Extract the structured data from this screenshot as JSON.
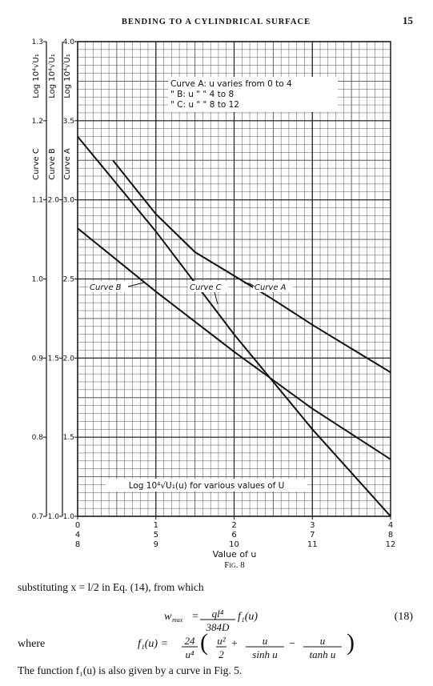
{
  "header": {
    "title": "BENDING TO A CYLINDRICAL SURFACE",
    "page": "15"
  },
  "chart_data": {
    "type": "line",
    "grid": true,
    "xlabel": "Value of u",
    "annotations": [
      "Curve A: u varies from 0 to 4",
      "\"  B: u   \"    \"   4 to 8",
      "\"  C: u   \"    \"   8 to 12"
    ],
    "note": "Log 10⁴√U₁(u) for various values of U",
    "x_axes": [
      {
        "xlim": [
          0,
          4
        ],
        "xticks": [
          0,
          1,
          2,
          3,
          4
        ]
      },
      {
        "xlim": [
          4,
          8
        ],
        "xticks": [
          4,
          5,
          6,
          7,
          8
        ]
      },
      {
        "xlim": [
          8,
          12
        ],
        "xticks": [
          8,
          9,
          10,
          11,
          12
        ]
      }
    ],
    "y_axes": [
      {
        "title": "Log 10⁴√U₁",
        "label": "Curve C",
        "ylim": [
          0.7,
          1.3
        ],
        "yticks": [
          0.7,
          0.8,
          0.9,
          {
            "value": 1,
            "label": "1.0"
          },
          1.1,
          1.2,
          1.3
        ]
      },
      {
        "title": "Log 10⁴√U₁",
        "label": "Curve B",
        "ylim": [
          1,
          2.5
        ],
        "yticks": [
          {
            "value": 1,
            "label": "1.0"
          },
          1.5,
          {
            "value": 2,
            "label": "2.0"
          }
        ]
      },
      {
        "title": "Log 10⁴√U₁",
        "label": "Curve A",
        "ylim": [
          1,
          4
        ],
        "yticks": [
          {
            "value": 1,
            "label": "1.0"
          },
          1.5,
          {
            "value": 2,
            "label": "2.0"
          },
          2.5,
          {
            "value": 3,
            "label": "3.0"
          },
          3.5,
          {
            "value": 4,
            "label": "4.0"
          }
        ]
      }
    ],
    "series": [
      {
        "name": "Curve A",
        "color": "#111111",
        "x_axis": 0,
        "y_axis": 2,
        "x": [
          0.45,
          1,
          1.5,
          2,
          2.5,
          3,
          3.5,
          4
        ],
        "values": [
          3.25,
          2.91,
          2.67,
          2.52,
          2.37,
          2.21,
          2.06,
          1.91
        ]
      },
      {
        "name": "Curve B",
        "color": "#111111",
        "x_axis": 1,
        "y_axis": 1,
        "x": [
          4,
          5,
          6,
          6.5,
          7,
          8
        ],
        "values": [
          1.91,
          1.71,
          1.52,
          1.43,
          1.34,
          1.18
        ]
      },
      {
        "name": "Curve C",
        "color": "#111111",
        "x_axis": 2,
        "y_axis": 0,
        "x": [
          8,
          9,
          10,
          10.5,
          11,
          12
        ],
        "values": [
          1.18,
          1.06,
          0.93,
          0.87,
          0.81,
          0.7
        ]
      }
    ]
  },
  "caption": "Fig. 8",
  "body": {
    "line1": "substituting x = l/2 in Eq. (14), from which",
    "eq18": {
      "w": "w",
      "sub": "max",
      "eq": "=",
      "num": "ql⁴",
      "den": "384D",
      "rhs": "f₁(u)",
      "number": "(18)"
    },
    "where": {
      "label": "where",
      "lhs": "f₁(u) =",
      "coef_num": "24",
      "coef_den": "u⁴",
      "open": "(",
      "close": ")",
      "terms": [
        {
          "op": "",
          "num": "u²",
          "den": "2"
        },
        {
          "op": "+",
          "num": "u",
          "den": "sinh u"
        },
        {
          "op": "−",
          "num": "u",
          "den": "tanh u"
        }
      ]
    },
    "line_last": "The function f₁(u) is also given by a curve in Fig. 5."
  }
}
